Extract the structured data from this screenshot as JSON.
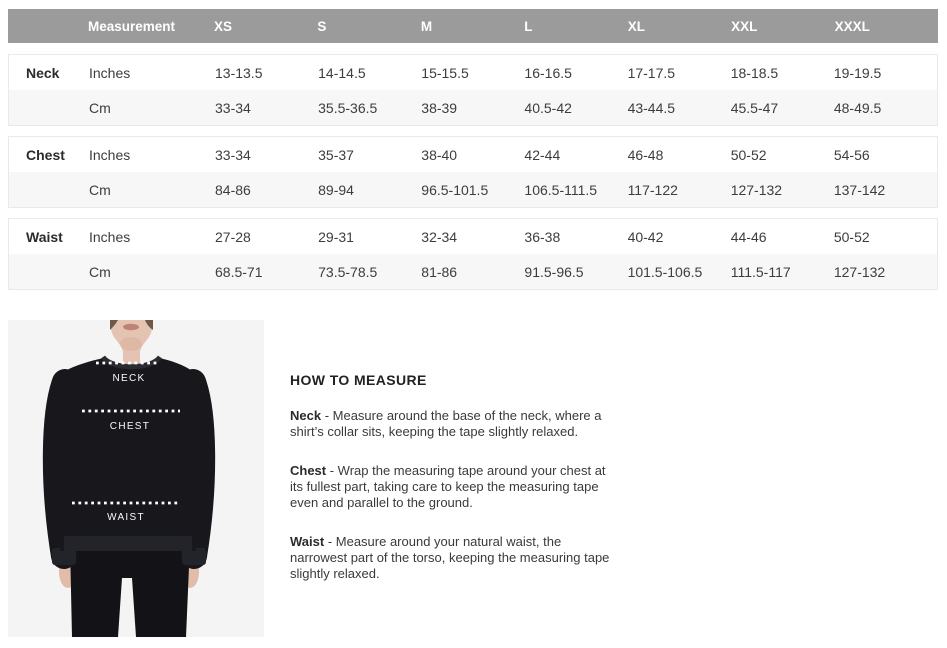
{
  "size_chart": {
    "columns": [
      "Measurement",
      "XS",
      "S",
      "M",
      "L",
      "XL",
      "XXL",
      "XXXL"
    ],
    "sections": [
      {
        "label": "Neck",
        "rows": [
          {
            "unit": "Inches",
            "values": [
              "13-13.5",
              "14-14.5",
              "15-15.5",
              "16-16.5",
              "17-17.5",
              "18-18.5",
              "19-19.5"
            ]
          },
          {
            "unit": "Cm",
            "values": [
              "33-34",
              "35.5-36.5",
              "38-39",
              "40.5-42",
              "43-44.5",
              "45.5-47",
              "48-49.5"
            ]
          }
        ]
      },
      {
        "label": "Chest",
        "rows": [
          {
            "unit": "Inches",
            "values": [
              "33-34",
              "35-37",
              "38-40",
              "42-44",
              "46-48",
              "50-52",
              "54-56"
            ]
          },
          {
            "unit": "Cm",
            "values": [
              "84-86",
              "89-94",
              "96.5-101.5",
              "106.5-111.5",
              "117-122",
              "127-132",
              "137-142"
            ]
          }
        ]
      },
      {
        "label": "Waist",
        "rows": [
          {
            "unit": "Inches",
            "values": [
              "27-28",
              "29-31",
              "32-34",
              "36-38",
              "40-42",
              "44-46",
              "50-52"
            ]
          },
          {
            "unit": "Cm",
            "values": [
              "68.5-71",
              "73.5-78.5",
              "81-86",
              "91.5-96.5",
              "101.5-106.5",
              "111.5-117",
              "127-132"
            ]
          }
        ]
      }
    ]
  },
  "figure": {
    "labels": {
      "neck": "NECK",
      "chest": "CHEST",
      "waist": "WAIST"
    }
  },
  "how_to_measure": {
    "title": "HOW TO MEASURE",
    "items": [
      {
        "term": "Neck",
        "text": "- Measure around the base of the neck, where a shirt’s collar sits, keeping the tape slightly relaxed."
      },
      {
        "term": "Chest",
        "text": "- Wrap the measuring tape around your chest at its fullest part, taking care to keep the measuring tape even and parallel to the ground."
      },
      {
        "term": "Waist",
        "text": "- Measure around your natural waist, the narrowest part of the torso, keeping the measuring tape slightly relaxed."
      }
    ]
  },
  "colors": {
    "header_bg": "#9b9b9b",
    "header_text": "#ffffff",
    "alt_row_bg": "#f7f7f7",
    "section_border": "#e9e9e9",
    "body_text": "#3d3d3d",
    "photo_bg": "#f4f4f4",
    "sweatshirt": "#17171c",
    "pants": "#121217",
    "skin": "#e4c3b2",
    "measure_line": "#ffffff"
  }
}
